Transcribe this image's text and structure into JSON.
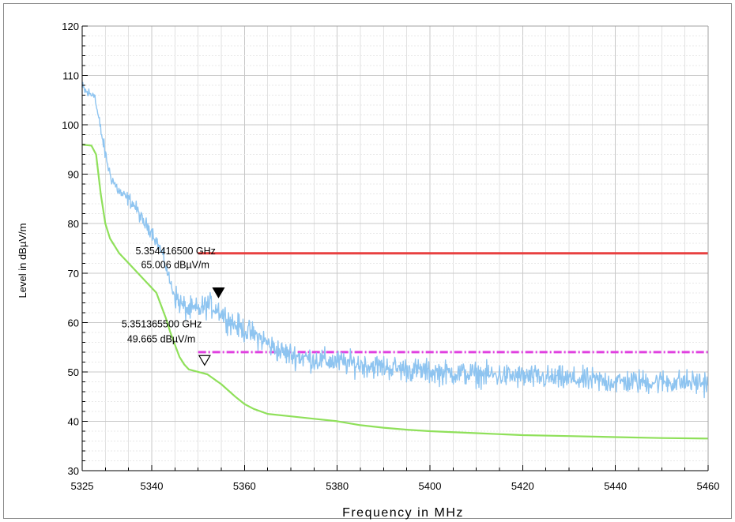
{
  "chart_data": {
    "type": "line",
    "xlabel": "Frequency in MHz",
    "ylabel": "Level in dBµV/m",
    "xlim": [
      5325,
      5460
    ],
    "ylim": [
      30,
      120
    ],
    "x_ticks": [
      "5325",
      "5340",
      "5360",
      "5380",
      "5400",
      "5420",
      "5440",
      "5460"
    ],
    "y_ticks": [
      "30",
      "40",
      "50",
      "60",
      "70",
      "80",
      "90",
      "100",
      "110",
      "120"
    ],
    "grid": true,
    "series": [
      {
        "color": "#8ec4f0",
        "noise": 1.0,
        "points": [
          [
            5325,
            107.5
          ],
          [
            5326,
            106.5
          ],
          [
            5327,
            106
          ],
          [
            5327.5,
            107
          ],
          [
            5328,
            104
          ],
          [
            5329,
            99
          ],
          [
            5330,
            94
          ],
          [
            5331,
            90
          ],
          [
            5332,
            88
          ],
          [
            5333,
            86.5
          ],
          [
            5334,
            85.5
          ],
          [
            5335,
            85
          ],
          [
            5336,
            84
          ],
          [
            5337,
            82.5
          ],
          [
            5338,
            80.5
          ],
          [
            5339,
            79.5
          ],
          [
            5340,
            78.5
          ],
          [
            5341,
            76.5
          ],
          [
            5342,
            74.5
          ],
          [
            5343,
            71.5
          ],
          [
            5344,
            68
          ],
          [
            5345,
            65.5
          ],
          [
            5346,
            64
          ],
          [
            5347,
            63
          ],
          [
            5348,
            62.5
          ],
          [
            5350,
            62.5
          ],
          [
            5352,
            63.5
          ],
          [
            5354,
            63
          ],
          [
            5356,
            61
          ],
          [
            5358,
            59.5
          ],
          [
            5360,
            58.5
          ],
          [
            5362,
            57.5
          ],
          [
            5364,
            56.5
          ],
          [
            5366,
            55
          ],
          [
            5368,
            54
          ],
          [
            5370,
            53.5
          ],
          [
            5375,
            52.5
          ],
          [
            5380,
            52
          ],
          [
            5390,
            51
          ],
          [
            5400,
            50
          ],
          [
            5410,
            49.5
          ],
          [
            5420,
            49
          ],
          [
            5430,
            48.5
          ],
          [
            5440,
            48
          ],
          [
            5450,
            48
          ],
          [
            5460,
            47.8
          ]
        ]
      },
      {
        "color": "#8fe05a",
        "noise": 0,
        "points": [
          [
            5325,
            96
          ],
          [
            5327,
            95.8
          ],
          [
            5328,
            94
          ],
          [
            5329,
            86
          ],
          [
            5330,
            80
          ],
          [
            5331,
            77
          ],
          [
            5333,
            74
          ],
          [
            5335,
            72
          ],
          [
            5337,
            70
          ],
          [
            5339,
            68
          ],
          [
            5341,
            66
          ],
          [
            5342,
            63.5
          ],
          [
            5343,
            61
          ],
          [
            5344,
            58
          ],
          [
            5345,
            55.5
          ],
          [
            5346,
            53
          ],
          [
            5347,
            51.5
          ],
          [
            5348,
            50.5
          ],
          [
            5350,
            50
          ],
          [
            5352,
            49.5
          ],
          [
            5355,
            47.5
          ],
          [
            5358,
            45
          ],
          [
            5360,
            43.5
          ],
          [
            5362,
            42.5
          ],
          [
            5365,
            41.5
          ],
          [
            5370,
            41
          ],
          [
            5375,
            40.5
          ],
          [
            5380,
            40
          ],
          [
            5385,
            39.2
          ],
          [
            5390,
            38.7
          ],
          [
            5395,
            38.3
          ],
          [
            5400,
            38
          ],
          [
            5410,
            37.6
          ],
          [
            5420,
            37.2
          ],
          [
            5430,
            37
          ],
          [
            5440,
            36.8
          ],
          [
            5450,
            36.6
          ],
          [
            5460,
            36.5
          ]
        ]
      }
    ],
    "limit_lines": [
      {
        "color": "#e84040",
        "style": "solid",
        "y": 74,
        "x_start": 5350,
        "x_end": 5460
      },
      {
        "color": "#e040e0",
        "style": "dash-dot",
        "y": 54,
        "x_start": 5350,
        "x_end": 5460
      }
    ],
    "markers": [
      {
        "symbol": "filled-triangle",
        "x": 5354.4,
        "y": 64.6,
        "freq_label": "5.354416500 GHz",
        "level_label": "65.006 dBµV/m",
        "label_anchor_x": 5336.5,
        "label_freq_y": 73.8,
        "label_level_y": 71
      },
      {
        "symbol": "open-triangle",
        "x": 5351.4,
        "y": 50.9,
        "freq_label": "5.351365500 GHz",
        "level_label": "49.665 dBµV/m",
        "label_anchor_x": 5333.5,
        "label_freq_y": 59,
        "label_level_y": 56
      }
    ]
  }
}
